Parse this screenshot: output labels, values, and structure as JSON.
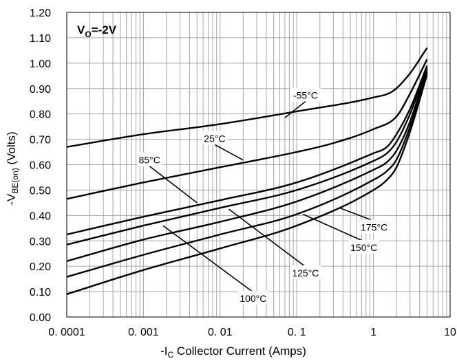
{
  "chart_data": {
    "type": "line",
    "annotation": {
      "main": "V",
      "sub": "O",
      "rest": "=-2V"
    },
    "xlabel": {
      "pre": "-I",
      "sub": "C",
      "post": " Collector Current (Amps)"
    },
    "ylabel": {
      "pre": "-V",
      "sub": "BE(on)",
      "post": " (Volts)"
    },
    "x_scale": "log",
    "xlim": [
      0.0001,
      10
    ],
    "ylim": [
      0.0,
      1.2
    ],
    "grid": true,
    "x_tick_labels": [
      "0. 0001",
      "0. 001",
      "0. 01",
      "0. 1",
      "1",
      "10"
    ],
    "y_tick_labels": [
      "0.00",
      "0.10",
      "0.20",
      "0.30",
      "0.40",
      "0.50",
      "0.60",
      "0.70",
      "0.80",
      "0.90",
      "1.00",
      "1.10",
      "1.20"
    ],
    "series": [
      {
        "name": "-55°C",
        "x": [
          0.0001,
          0.001,
          0.01,
          0.1,
          1,
          1.8,
          3,
          5
        ],
        "y": [
          0.67,
          0.72,
          0.76,
          0.81,
          0.865,
          0.89,
          0.96,
          1.06
        ]
      },
      {
        "name": "25°C",
        "x": [
          0.0001,
          0.001,
          0.01,
          0.1,
          0.3,
          1,
          2,
          3,
          5
        ],
        "y": [
          0.465,
          0.53,
          0.59,
          0.65,
          0.685,
          0.74,
          0.79,
          0.88,
          1.015
        ]
      },
      {
        "name": "85°C",
        "x": [
          0.0001,
          0.001,
          0.01,
          0.1,
          1,
          1.5,
          2,
          3,
          5
        ],
        "y": [
          0.325,
          0.395,
          0.46,
          0.53,
          0.645,
          0.67,
          0.72,
          0.82,
          0.99
        ]
      },
      {
        "name": "100°C",
        "x": [
          0.0001,
          0.001,
          0.01,
          0.1,
          1,
          1.5,
          2,
          3,
          5
        ],
        "y": [
          0.285,
          0.36,
          0.43,
          0.5,
          0.615,
          0.645,
          0.69,
          0.8,
          0.98
        ]
      },
      {
        "name": "125°C",
        "x": [
          0.0001,
          0.001,
          0.01,
          0.1,
          1,
          1.5,
          2,
          3,
          5
        ],
        "y": [
          0.22,
          0.305,
          0.375,
          0.455,
          0.58,
          0.61,
          0.655,
          0.77,
          0.975
        ]
      },
      {
        "name": "150°C",
        "x": [
          0.0001,
          0.001,
          0.01,
          0.1,
          1,
          1.5,
          2,
          3,
          5
        ],
        "y": [
          0.158,
          0.245,
          0.325,
          0.405,
          0.54,
          0.575,
          0.62,
          0.75,
          0.965
        ]
      },
      {
        "name": "175°C",
        "x": [
          0.0001,
          0.001,
          0.01,
          0.1,
          1,
          1.5,
          2,
          3,
          5
        ],
        "y": [
          0.09,
          0.185,
          0.27,
          0.36,
          0.5,
          0.54,
          0.59,
          0.73,
          0.955
        ]
      }
    ],
    "curve_labels": [
      {
        "text": "-55°C",
        "at": [
          0.13,
          0.86
        ],
        "to": [
          0.07,
          0.785
        ]
      },
      {
        "text": "25°C",
        "at": [
          0.0085,
          0.69
        ],
        "to": [
          0.02,
          0.618
        ]
      },
      {
        "text": "85°C",
        "at": [
          0.0012,
          0.605
        ],
        "to": [
          0.005,
          0.45
        ]
      },
      {
        "text": "100°C",
        "at": [
          0.027,
          0.06
        ],
        "to": [
          0.0018,
          0.36
        ]
      },
      {
        "text": "125°C",
        "at": [
          0.13,
          0.16
        ],
        "to": [
          0.013,
          0.425
        ]
      },
      {
        "text": "150°C",
        "at": [
          0.75,
          0.26
        ],
        "to": [
          0.12,
          0.405
        ]
      },
      {
        "text": "175°C",
        "at": [
          1.02,
          0.34
        ],
        "to": [
          0.36,
          0.43
        ]
      }
    ]
  }
}
